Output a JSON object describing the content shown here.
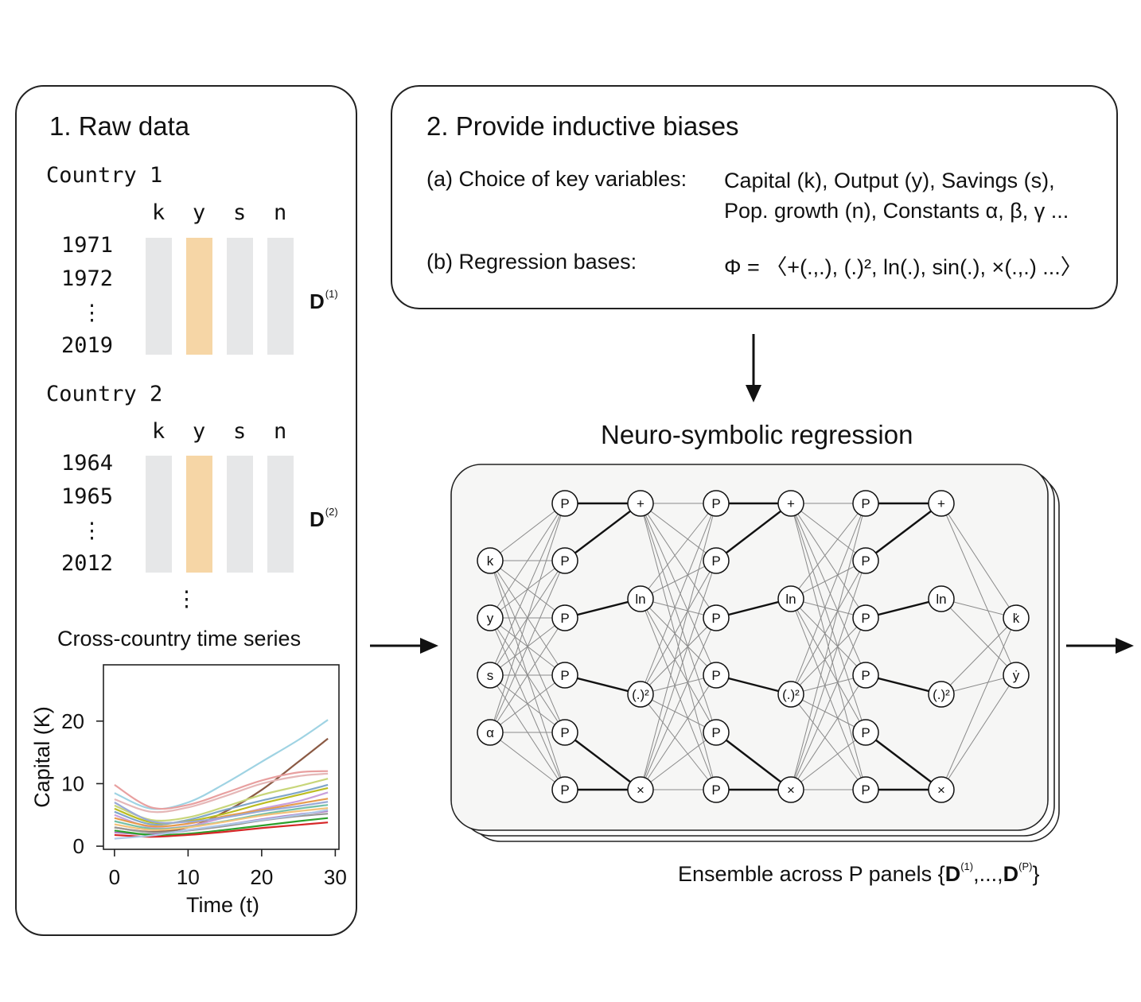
{
  "panel1": {
    "title": "1. Raw data",
    "countries": [
      {
        "name": "Country 1",
        "variables": [
          "k",
          "y",
          "s",
          "n"
        ],
        "years": [
          "1971",
          "1972",
          "⋮",
          "2019"
        ],
        "label": "D",
        "label_sup": "(1)"
      },
      {
        "name": "Country 2",
        "variables": [
          "k",
          "y",
          "s",
          "n"
        ],
        "years": [
          "1964",
          "1965",
          "⋮",
          "2012"
        ],
        "label": "D",
        "label_sup": "(2)"
      }
    ],
    "more_dots": "⋮",
    "chart_title": "Cross-country time series"
  },
  "panel2": {
    "title": "2. Provide inductive biases",
    "row_a_label": "(a) Choice of key variables:",
    "row_a_line1": "Capital (k), Output (y), Savings (s),",
    "row_a_line2": "Pop. growth (n), Constants α, β, γ ...",
    "row_b_label": "(b) Regression bases:",
    "row_b_value": "Φ = 〈+(.,.), (.)², ln(.), sin(.), ×(.,.) ...〉"
  },
  "network": {
    "title": "Neuro-symbolic regression",
    "inputs": [
      "k",
      "y",
      "s",
      "α"
    ],
    "proj_label": "P",
    "ops": [
      "+",
      "ln",
      "(.)²",
      "×"
    ],
    "outputs": [
      "k̇",
      "ẏ"
    ],
    "ensemble_prefix": "Ensemble across P panels {",
    "ensemble_d1": "D",
    "ensemble_sup1": "(1)",
    "ensemble_mid": ",...,",
    "ensemble_d2": "D",
    "ensemble_sup2": "(P)",
    "ensemble_suffix": "}"
  },
  "colors": {
    "bar_grey": "#e6e7e8",
    "bar_highlight": "#f6d6a6",
    "edge_thin": "#8a8a8a",
    "edge_thick": "#111111"
  },
  "chart_data": {
    "type": "line",
    "title": "",
    "xlabel": "Time (t)",
    "ylabel": "Capital (K)",
    "xlim": [
      -1.5,
      30.5
    ],
    "ylim": [
      -0.5,
      29
    ],
    "xticks": [
      0,
      10,
      20,
      30
    ],
    "yticks": [
      0,
      10,
      20
    ],
    "grid": false,
    "x": [
      0,
      5,
      10,
      15,
      20,
      25,
      29
    ],
    "series": [
      {
        "color": "#9fd3e3",
        "values": [
          8.5,
          6.0,
          7.0,
          10.0,
          13.5,
          17.0,
          20.2
        ]
      },
      {
        "color": "#8b5a44",
        "values": [
          3.0,
          2.3,
          3.0,
          5.5,
          9.0,
          13.5,
          17.2
        ]
      },
      {
        "color": "#e8a0a0",
        "values": [
          9.8,
          6.2,
          6.6,
          8.5,
          10.5,
          11.8,
          12.0
        ]
      },
      {
        "color": "#e5b7b7",
        "values": [
          7.5,
          5.5,
          6.2,
          8.0,
          10.0,
          11.2,
          11.6
        ]
      },
      {
        "color": "#c8d67a",
        "values": [
          6.5,
          4.2,
          4.6,
          6.3,
          8.2,
          9.6,
          10.8
        ]
      },
      {
        "color": "#7fa6c9",
        "values": [
          5.5,
          3.5,
          4.2,
          5.8,
          7.3,
          8.6,
          9.8
        ]
      },
      {
        "color": "#bcbd22",
        "values": [
          6.0,
          3.8,
          4.0,
          5.2,
          6.8,
          8.2,
          9.3
        ]
      },
      {
        "color": "#c9a0dc",
        "values": [
          5.0,
          3.0,
          3.2,
          4.6,
          6.0,
          7.2,
          8.6
        ]
      },
      {
        "color": "#e69b4c",
        "values": [
          4.5,
          3.2,
          3.6,
          4.8,
          5.8,
          6.8,
          7.6
        ]
      },
      {
        "color": "#9aa9d6",
        "values": [
          7.0,
          4.0,
          3.9,
          4.6,
          5.6,
          6.4,
          7.1
        ]
      },
      {
        "color": "#74c0a8",
        "values": [
          4.0,
          2.8,
          3.1,
          4.0,
          5.1,
          6.0,
          6.6
        ]
      },
      {
        "color": "#f2c27a",
        "values": [
          3.5,
          2.6,
          3.0,
          3.9,
          4.9,
          5.6,
          6.1
        ]
      },
      {
        "color": "#b07cc6",
        "values": [
          2.2,
          1.9,
          2.5,
          3.4,
          4.3,
          5.1,
          5.6
        ]
      },
      {
        "color": "#999999",
        "values": [
          3.0,
          2.2,
          2.5,
          3.2,
          4.1,
          4.8,
          5.2
        ]
      },
      {
        "color": "#2ca02c",
        "values": [
          2.5,
          1.8,
          2.0,
          2.6,
          3.3,
          4.0,
          4.5
        ]
      },
      {
        "color": "#d62728",
        "values": [
          1.8,
          1.5,
          1.8,
          2.3,
          2.9,
          3.4,
          3.8
        ]
      },
      {
        "color": "#aec7e8",
        "values": [
          1.2,
          1.7,
          2.6,
          3.4,
          4.2,
          5.0,
          5.8
        ]
      }
    ]
  }
}
